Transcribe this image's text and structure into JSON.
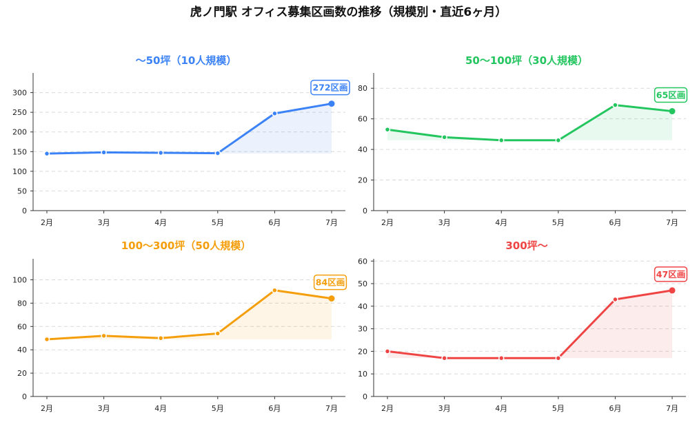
{
  "title": "虎ノ門駅 オフィス募集区画数の推移（規模別・直近6ヶ月）",
  "chart_data": [
    {
      "type": "area",
      "title": "～50坪（10人規模）",
      "color": "#3b82f6",
      "categories": [
        "2月",
        "3月",
        "4月",
        "5月",
        "6月",
        "7月"
      ],
      "values": [
        145,
        148,
        147,
        146,
        247,
        272
      ],
      "ylim": [
        0,
        350
      ],
      "yticks": [
        0,
        50,
        100,
        150,
        200,
        250,
        300
      ],
      "annotation": "272区画",
      "grid": true
    },
    {
      "type": "area",
      "title": "50～100坪（30人規模）",
      "color": "#22c55e",
      "categories": [
        "2月",
        "3月",
        "4月",
        "5月",
        "6月",
        "7月"
      ],
      "values": [
        53,
        48,
        46,
        46,
        69,
        65
      ],
      "ylim": [
        0,
        90
      ],
      "yticks": [
        0,
        20,
        40,
        60,
        80
      ],
      "annotation": "65区画",
      "grid": true
    },
    {
      "type": "area",
      "title": "100～300坪（50人規模）",
      "color": "#f59e0b",
      "categories": [
        "2月",
        "3月",
        "4月",
        "5月",
        "6月",
        "7月"
      ],
      "values": [
        49,
        52,
        50,
        54,
        91,
        84
      ],
      "ylim": [
        0,
        118
      ],
      "yticks": [
        0,
        20,
        40,
        60,
        80,
        100
      ],
      "annotation": "84区画",
      "grid": true
    },
    {
      "type": "area",
      "title": "300坪～",
      "color": "#ef4444",
      "categories": [
        "2月",
        "3月",
        "4月",
        "5月",
        "6月",
        "7月"
      ],
      "values": [
        20,
        17,
        17,
        17,
        43,
        47
      ],
      "ylim": [
        0,
        61
      ],
      "yticks": [
        0,
        10,
        20,
        30,
        40,
        50,
        60
      ],
      "annotation": "47区画",
      "grid": true
    }
  ]
}
